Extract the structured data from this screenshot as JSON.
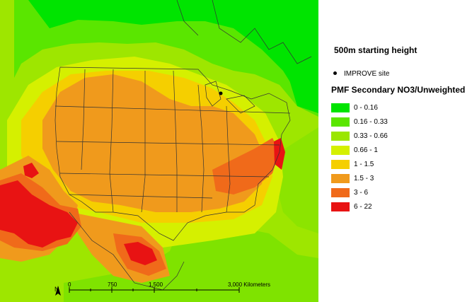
{
  "map": {
    "scale_labels": [
      "0",
      "750",
      "1,500",
      "3,000 Kilometers"
    ],
    "north_label": "N"
  },
  "legend": {
    "subtitle": "500m starting height",
    "site_label": "IMPROVE site",
    "title": "PMF Secondary NO3/Unweighted",
    "classes": [
      {
        "label": "0 - 0.16",
        "color": "#00e400"
      },
      {
        "label": "0.16 - 0.33",
        "color": "#5ae600"
      },
      {
        "label": "0.33 - 0.66",
        "color": "#9be600"
      },
      {
        "label": "0.66 - 1",
        "color": "#d5f000"
      },
      {
        "label": "1 - 1.5",
        "color": "#f5cf00"
      },
      {
        "label": "1.5 - 3",
        "color": "#f09a1c"
      },
      {
        "label": "3 - 6",
        "color": "#f06a1a"
      },
      {
        "label": "6 - 22",
        "color": "#e81313"
      }
    ]
  }
}
